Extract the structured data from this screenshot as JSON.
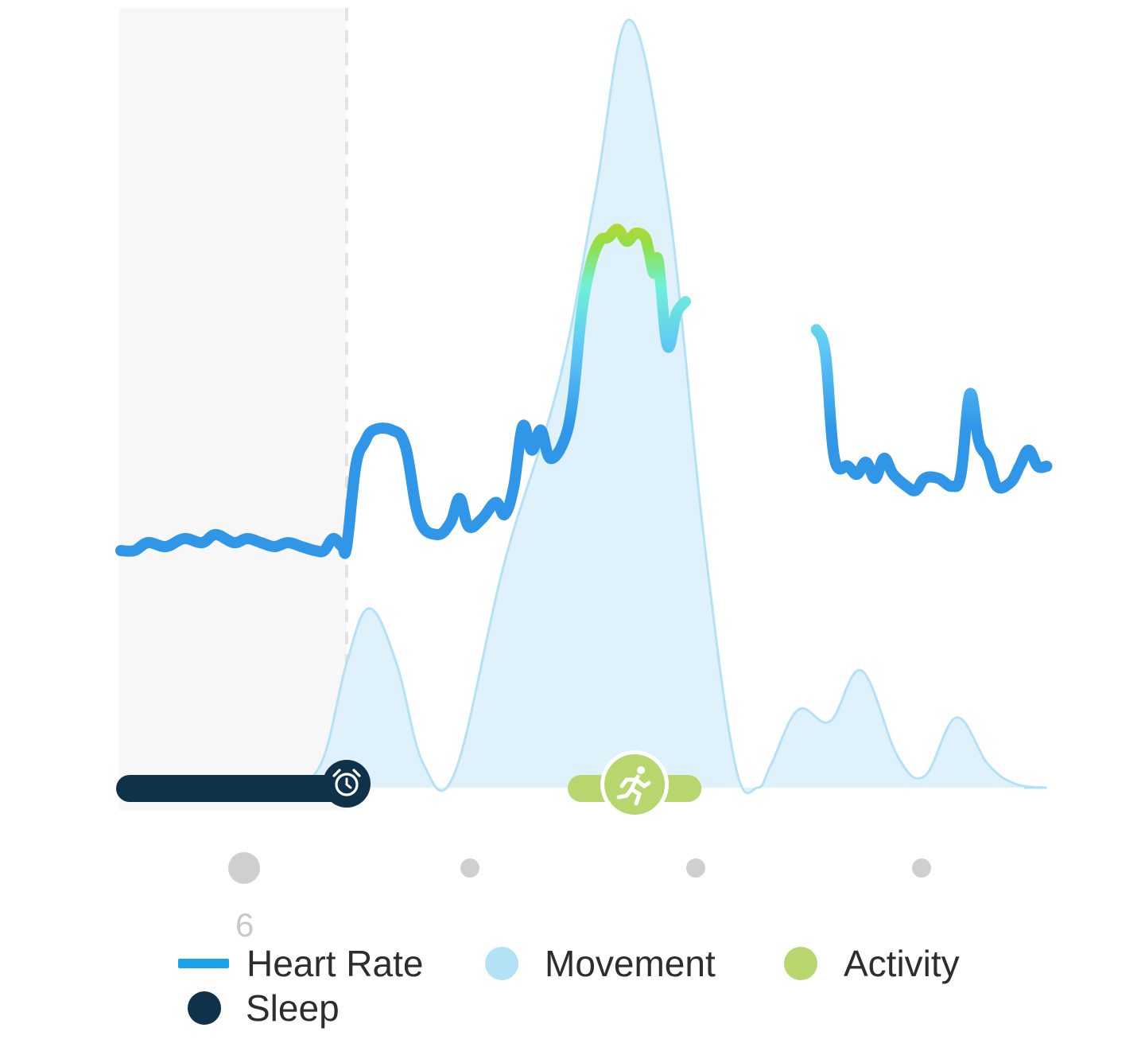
{
  "colors": {
    "heart_rate": "#2f96e8",
    "movement": "#b3e2f7",
    "activity": "#b7d76e",
    "sleep": "#0f3149",
    "timeline_dot": "#cfcfcf"
  },
  "icons": {
    "sleep_end": "alarm-clock-icon",
    "activity": "running-person-icon"
  },
  "axis": {
    "ticks": [
      "6",
      "",
      "",
      ""
    ]
  },
  "legend": [
    {
      "label": "Heart Rate",
      "shape": "line",
      "color": "#1aa3e8"
    },
    {
      "label": "Movement",
      "shape": "dot",
      "color": "#b3e2f7"
    },
    {
      "label": "Activity",
      "shape": "dot",
      "color": "#b7d76e"
    },
    {
      "label": "Sleep",
      "shape": "dot",
      "color": "#0f3149"
    }
  ],
  "chart_data": {
    "type": "line",
    "sleep_interval": [
      0,
      1
    ],
    "activity_interval": [
      2.0,
      2.55
    ],
    "series": [
      {
        "name": "Heart Rate",
        "segments": [
          [
            [
              0,
              59
            ],
            [
              0.06,
              59
            ],
            [
              0.12,
              61
            ],
            [
              0.2,
              60
            ],
            [
              0.28,
              62
            ],
            [
              0.36,
              61
            ],
            [
              0.42,
              63
            ],
            [
              0.5,
              61
            ],
            [
              0.56,
              62
            ],
            [
              0.62,
              61
            ],
            [
              0.68,
              60
            ],
            [
              0.74,
              61
            ],
            [
              0.8,
              60
            ],
            [
              0.86,
              59
            ],
            [
              0.9,
              59
            ],
            [
              0.94,
              62
            ],
            [
              0.98,
              60
            ],
            [
              1.0,
              60
            ],
            [
              1.04,
              80
            ],
            [
              1.08,
              86
            ],
            [
              1.12,
              89
            ],
            [
              1.2,
              89
            ],
            [
              1.26,
              85
            ],
            [
              1.32,
              67
            ],
            [
              1.4,
              63
            ],
            [
              1.46,
              66
            ],
            [
              1.5,
              72
            ],
            [
              1.54,
              65
            ],
            [
              1.6,
              67
            ],
            [
              1.66,
              71
            ],
            [
              1.7,
              68
            ],
            [
              1.74,
              75
            ],
            [
              1.78,
              90
            ],
            [
              1.82,
              84
            ],
            [
              1.86,
              89
            ],
            [
              1.9,
              82
            ],
            [
              1.96,
              86
            ],
            [
              2.0,
              96
            ],
            [
              2.04,
              118
            ],
            [
              2.08,
              130
            ],
            [
              2.12,
              136
            ],
            [
              2.16,
              137
            ],
            [
              2.2,
              139
            ],
            [
              2.24,
              136
            ],
            [
              2.28,
              138
            ],
            [
              2.32,
              137
            ],
            [
              2.34,
              133
            ],
            [
              2.36,
              128
            ],
            [
              2.38,
              131
            ],
            [
              2.42,
              110
            ],
            [
              2.46,
              118
            ],
            [
              2.5,
              121
            ]
          ],
          [
            [
              3.08,
              114
            ],
            [
              3.12,
              108
            ],
            [
              3.16,
              82
            ],
            [
              3.22,
              80
            ],
            [
              3.26,
              78
            ],
            [
              3.3,
              81
            ],
            [
              3.34,
              77
            ],
            [
              3.38,
              82
            ],
            [
              3.42,
              78
            ],
            [
              3.48,
              75
            ],
            [
              3.52,
              74
            ],
            [
              3.56,
              77
            ],
            [
              3.62,
              77
            ],
            [
              3.68,
              75
            ],
            [
              3.72,
              78
            ],
            [
              3.76,
              98
            ],
            [
              3.8,
              86
            ],
            [
              3.84,
              82
            ],
            [
              3.88,
              75
            ],
            [
              3.94,
              76
            ],
            [
              3.98,
              80
            ],
            [
              4.02,
              84
            ],
            [
              4.06,
              80
            ],
            [
              4.1,
              80
            ]
          ]
        ]
      },
      {
        "name": "Movement",
        "points": [
          [
            0.8,
            0
          ],
          [
            0.9,
            8
          ],
          [
            1.0,
            32
          ],
          [
            1.1,
            46
          ],
          [
            1.22,
            32
          ],
          [
            1.34,
            6
          ],
          [
            1.48,
            4
          ],
          [
            1.7,
            58
          ],
          [
            1.94,
            104
          ],
          [
            2.1,
            152
          ],
          [
            2.25,
            197
          ],
          [
            2.42,
            152
          ],
          [
            2.58,
            65
          ],
          [
            2.72,
            6
          ],
          [
            2.82,
            0
          ],
          [
            2.88,
            6
          ],
          [
            3.0,
            20
          ],
          [
            3.14,
            17
          ],
          [
            3.28,
            30
          ],
          [
            3.44,
            8
          ],
          [
            3.56,
            3
          ],
          [
            3.7,
            18
          ],
          [
            3.84,
            6
          ],
          [
            3.96,
            1
          ],
          [
            4.1,
            0
          ]
        ]
      }
    ]
  }
}
